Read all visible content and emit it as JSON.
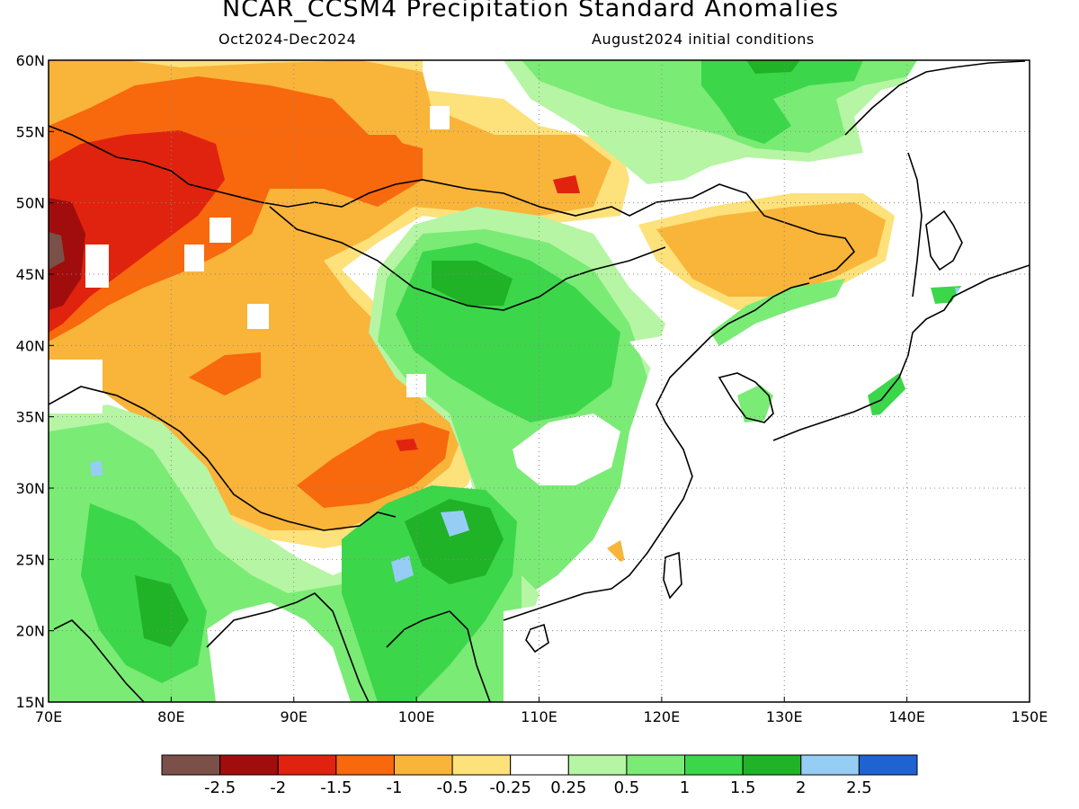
{
  "title": "NCAR_CCSM4 Precipitation Standard Anomalies",
  "subtitle_left": "Oct2024-Dec2024",
  "subtitle_right": "August2024 initial conditions",
  "map": {
    "lon_range": [
      70,
      150
    ],
    "lat_range": [
      15,
      60
    ],
    "lon_ticks": [
      {
        "value": 70,
        "label": "70E"
      },
      {
        "value": 80,
        "label": "80E"
      },
      {
        "value": 90,
        "label": "90E"
      },
      {
        "value": 100,
        "label": "100E"
      },
      {
        "value": 110,
        "label": "110E"
      },
      {
        "value": 120,
        "label": "120E"
      },
      {
        "value": 130,
        "label": "130E"
      },
      {
        "value": 140,
        "label": "140E"
      },
      {
        "value": 150,
        "label": "150E"
      }
    ],
    "lat_ticks": [
      {
        "value": 60,
        "label": "60N"
      },
      {
        "value": 55,
        "label": "55N"
      },
      {
        "value": 50,
        "label": "50N"
      },
      {
        "value": 45,
        "label": "45N"
      },
      {
        "value": 40,
        "label": "40N"
      },
      {
        "value": 35,
        "label": "35N"
      },
      {
        "value": 30,
        "label": "30N"
      },
      {
        "value": 25,
        "label": "25N"
      },
      {
        "value": 20,
        "label": "20N"
      },
      {
        "value": 15,
        "label": "15N"
      }
    ],
    "gridlines": "dotted",
    "colors": {
      "dry_very_strong": "#7a5048",
      "dry_2": "#a10d0d",
      "dry_15": "#e0230e",
      "dry_1": "#f8680d",
      "dry_05": "#f9b43a",
      "dry_025": "#fde17a",
      "neutral": "#ffffff",
      "wet_025": "#b6f5a3",
      "wet_05": "#7aeb75",
      "wet_1": "#3cd64a",
      "wet_15": "#20b227",
      "wet_2": "#96cdf5",
      "wet_25": "#1f62d2"
    }
  },
  "colorbar": {
    "colors": [
      "#7a5048",
      "#a10d0d",
      "#e0230e",
      "#f8680d",
      "#f9b43a",
      "#fde17a",
      "#ffffff",
      "#b6f5a3",
      "#7aeb75",
      "#3cd64a",
      "#20b227",
      "#96cdf5",
      "#1f62d2"
    ],
    "labels": [
      "-2.5",
      "-2",
      "-1.5",
      "-1",
      "-0.5",
      "-0.25",
      "0.25",
      "0.5",
      "1",
      "1.5",
      "2",
      "2.5"
    ]
  }
}
